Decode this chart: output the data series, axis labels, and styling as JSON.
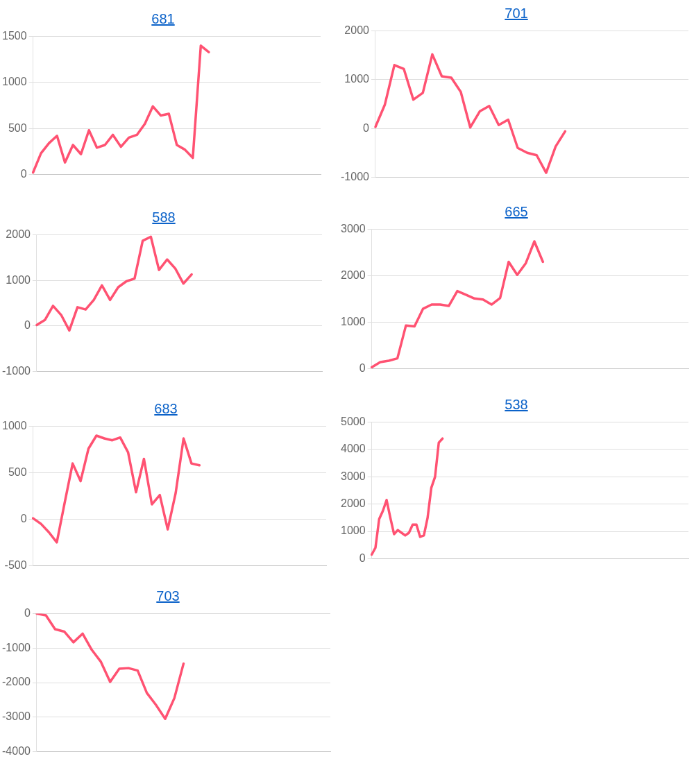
{
  "chart_data": [
    {
      "type": "line",
      "title": "681",
      "categories": [
        null,
        null,
        null,
        null,
        null,
        null,
        null,
        null,
        null,
        null,
        null,
        null,
        null,
        null,
        null,
        null,
        null,
        null,
        null,
        null,
        null,
        null,
        null,
        null,
        null,
        null,
        null,
        null,
        null,
        null,
        null,
        null,
        null,
        null,
        null,
        null,
        null
      ],
      "series": [
        {
          "color": "#ff5272",
          "values": [
            20,
            230,
            340,
            420,
            130,
            320,
            220,
            480,
            290,
            320,
            430,
            300,
            400,
            430,
            550,
            740,
            640,
            660,
            320,
            270,
            180,
            1400,
            1330,
            null,
            null,
            null,
            null,
            null,
            null,
            null,
            null,
            null,
            null,
            null,
            null,
            null,
            null
          ]
        }
      ],
      "ylim": [
        0,
        1500
      ],
      "yticks": [
        0,
        500,
        1000,
        1500
      ],
      "grid": "y",
      "legend": false,
      "marker": "none",
      "tick_labels": "y"
    },
    {
      "type": "line",
      "title": "701",
      "categories": [
        null,
        null,
        null,
        null,
        null,
        null,
        null,
        null,
        null,
        null,
        null,
        null,
        null,
        null,
        null,
        null,
        null,
        null,
        null,
        null,
        null,
        null,
        null,
        null,
        null,
        null,
        null,
        null,
        null,
        null,
        null,
        null,
        null,
        null
      ],
      "series": [
        {
          "color": "#ff5272",
          "values": [
            30,
            490,
            1300,
            1220,
            590,
            730,
            1520,
            1070,
            1040,
            750,
            20,
            350,
            460,
            70,
            180,
            -400,
            -500,
            -550,
            -910,
            -370,
            -60,
            null,
            null,
            null,
            null,
            null,
            null,
            null,
            null,
            null,
            null,
            null,
            null,
            null
          ]
        }
      ],
      "ylim": [
        -1000,
        2000
      ],
      "yticks": [
        -1000,
        0,
        1000,
        2000
      ],
      "grid": "y",
      "legend": false,
      "marker": "none",
      "tick_labels": "y"
    },
    {
      "type": "line",
      "title": "588",
      "categories": [
        null,
        null,
        null,
        null,
        null,
        null,
        null,
        null,
        null,
        null,
        null,
        null,
        null,
        null,
        null,
        null,
        null,
        null,
        null,
        null,
        null,
        null,
        null,
        null,
        null,
        null,
        null,
        null,
        null,
        null,
        null,
        null,
        null,
        null,
        null,
        null
      ],
      "series": [
        {
          "color": "#ff5272",
          "values": [
            20,
            130,
            440,
            240,
            -100,
            410,
            360,
            570,
            890,
            570,
            850,
            980,
            1040,
            1870,
            1960,
            1230,
            1460,
            1260,
            930,
            1130,
            null,
            null,
            null,
            null,
            null,
            null,
            null,
            null,
            null,
            null,
            null,
            null,
            null,
            null,
            null,
            null
          ]
        }
      ],
      "ylim": [
        -1000,
        2000
      ],
      "yticks": [
        -1000,
        0,
        1000,
        2000
      ],
      "grid": "y",
      "legend": false,
      "marker": "none",
      "tick_labels": "y"
    },
    {
      "type": "line",
      "title": "665",
      "categories": [
        null,
        null,
        null,
        null,
        null,
        null,
        null,
        null,
        null,
        null,
        null,
        null,
        null,
        null,
        null,
        null,
        null,
        null,
        null,
        null,
        null,
        null,
        null,
        null,
        null,
        null,
        null,
        null,
        null,
        null,
        null,
        null,
        null,
        null,
        null,
        null,
        null,
        null
      ],
      "series": [
        {
          "color": "#ff5272",
          "values": [
            30,
            140,
            170,
            220,
            930,
            910,
            1290,
            1380,
            1380,
            1350,
            1670,
            1590,
            1510,
            1490,
            1380,
            1520,
            2300,
            2020,
            2270,
            2740,
            2300,
            null,
            null,
            null,
            null,
            null,
            null,
            null,
            null,
            null,
            null,
            null,
            null,
            null,
            null,
            null,
            null,
            null
          ]
        }
      ],
      "ylim": [
        0,
        3000
      ],
      "yticks": [
        0,
        1000,
        2000,
        3000
      ],
      "grid": "y",
      "legend": false,
      "marker": "none",
      "tick_labels": "y"
    },
    {
      "type": "line",
      "title": "683",
      "categories": [
        null,
        null,
        null,
        null,
        null,
        null,
        null,
        null,
        null,
        null,
        null,
        null,
        null,
        null,
        null,
        null,
        null,
        null,
        null,
        null,
        null,
        null,
        null,
        null,
        null,
        null,
        null,
        null,
        null,
        null,
        null,
        null,
        null,
        null,
        null,
        null,
        null,
        null
      ],
      "series": [
        {
          "color": "#ff5272",
          "values": [
            10,
            -50,
            -140,
            -250,
            180,
            600,
            410,
            760,
            900,
            870,
            850,
            880,
            720,
            290,
            650,
            160,
            260,
            -110,
            280,
            870,
            600,
            580,
            null,
            null,
            null,
            null,
            null,
            null,
            null,
            null,
            null,
            null,
            null,
            null,
            null,
            null,
            null,
            null
          ]
        }
      ],
      "ylim": [
        -500,
        1000
      ],
      "yticks": [
        -500,
        0,
        500,
        1000
      ],
      "grid": "y",
      "legend": false,
      "marker": "none",
      "tick_labels": "y"
    },
    {
      "type": "line",
      "title": "538",
      "categories": [
        null,
        null,
        null,
        null,
        null,
        null,
        null,
        null,
        null,
        null,
        null,
        null,
        null,
        null,
        null,
        null,
        null,
        null,
        null,
        null,
        null,
        null,
        null,
        null,
        null,
        null,
        null,
        null,
        null,
        null,
        null,
        null,
        null,
        null,
        null,
        null,
        null,
        null,
        null,
        null,
        null,
        null,
        null,
        null,
        null,
        null,
        null,
        null,
        null,
        null,
        null,
        null,
        null,
        null,
        null,
        null,
        null,
        null,
        null,
        null,
        null,
        null,
        null,
        null,
        null,
        null,
        null,
        null,
        null,
        null,
        null,
        null,
        null,
        null,
        null,
        null,
        null,
        null,
        null,
        null,
        null,
        null,
        null,
        null,
        null,
        null
      ],
      "series": [
        {
          "color": "#ff5272",
          "values": [
            150,
            400,
            1450,
            1750,
            2150,
            1500,
            900,
            1050,
            950,
            850,
            950,
            1250,
            1250,
            800,
            850,
            1500,
            2600,
            3000,
            4250,
            4400,
            null,
            null,
            null,
            null,
            null,
            null,
            null,
            null,
            null,
            null,
            null,
            null,
            null,
            null,
            null,
            null,
            null,
            null,
            null,
            null,
            null,
            null,
            null,
            null,
            null,
            null,
            null,
            null,
            null,
            null,
            null,
            null,
            null,
            null,
            null,
            null,
            null,
            null,
            null,
            null,
            null,
            null,
            null,
            null,
            null,
            null,
            null,
            null,
            null,
            null,
            null,
            null,
            null,
            null,
            null,
            null,
            null,
            null,
            null,
            null,
            null,
            null,
            null,
            null,
            null,
            null
          ]
        }
      ],
      "ylim": [
        0,
        5000
      ],
      "yticks": [
        0,
        1000,
        2000,
        3000,
        4000,
        5000
      ],
      "grid": "y",
      "legend": false,
      "marker": "none",
      "tick_labels": "y"
    },
    {
      "type": "line",
      "title": "703",
      "categories": [
        null,
        null,
        null,
        null,
        null,
        null,
        null,
        null,
        null,
        null,
        null,
        null,
        null,
        null,
        null,
        null,
        null,
        null,
        null,
        null,
        null,
        null,
        null,
        null,
        null,
        null,
        null,
        null,
        null,
        null,
        null,
        null,
        null
      ],
      "series": [
        {
          "color": "#ff5272",
          "values": [
            0,
            -50,
            -450,
            -520,
            -830,
            -580,
            -1050,
            -1400,
            -1980,
            -1600,
            -1580,
            -1650,
            -2300,
            -2650,
            -3050,
            -2450,
            -1450,
            null,
            null,
            null,
            null,
            null,
            null,
            null,
            null,
            null,
            null,
            null,
            null,
            null,
            null,
            null,
            null
          ]
        }
      ],
      "ylim": [
        -4000,
        0
      ],
      "yticks": [
        -4000,
        -3000,
        -2000,
        -1000,
        0
      ],
      "grid": "y",
      "legend": false,
      "marker": "none",
      "tick_labels": "y"
    }
  ]
}
